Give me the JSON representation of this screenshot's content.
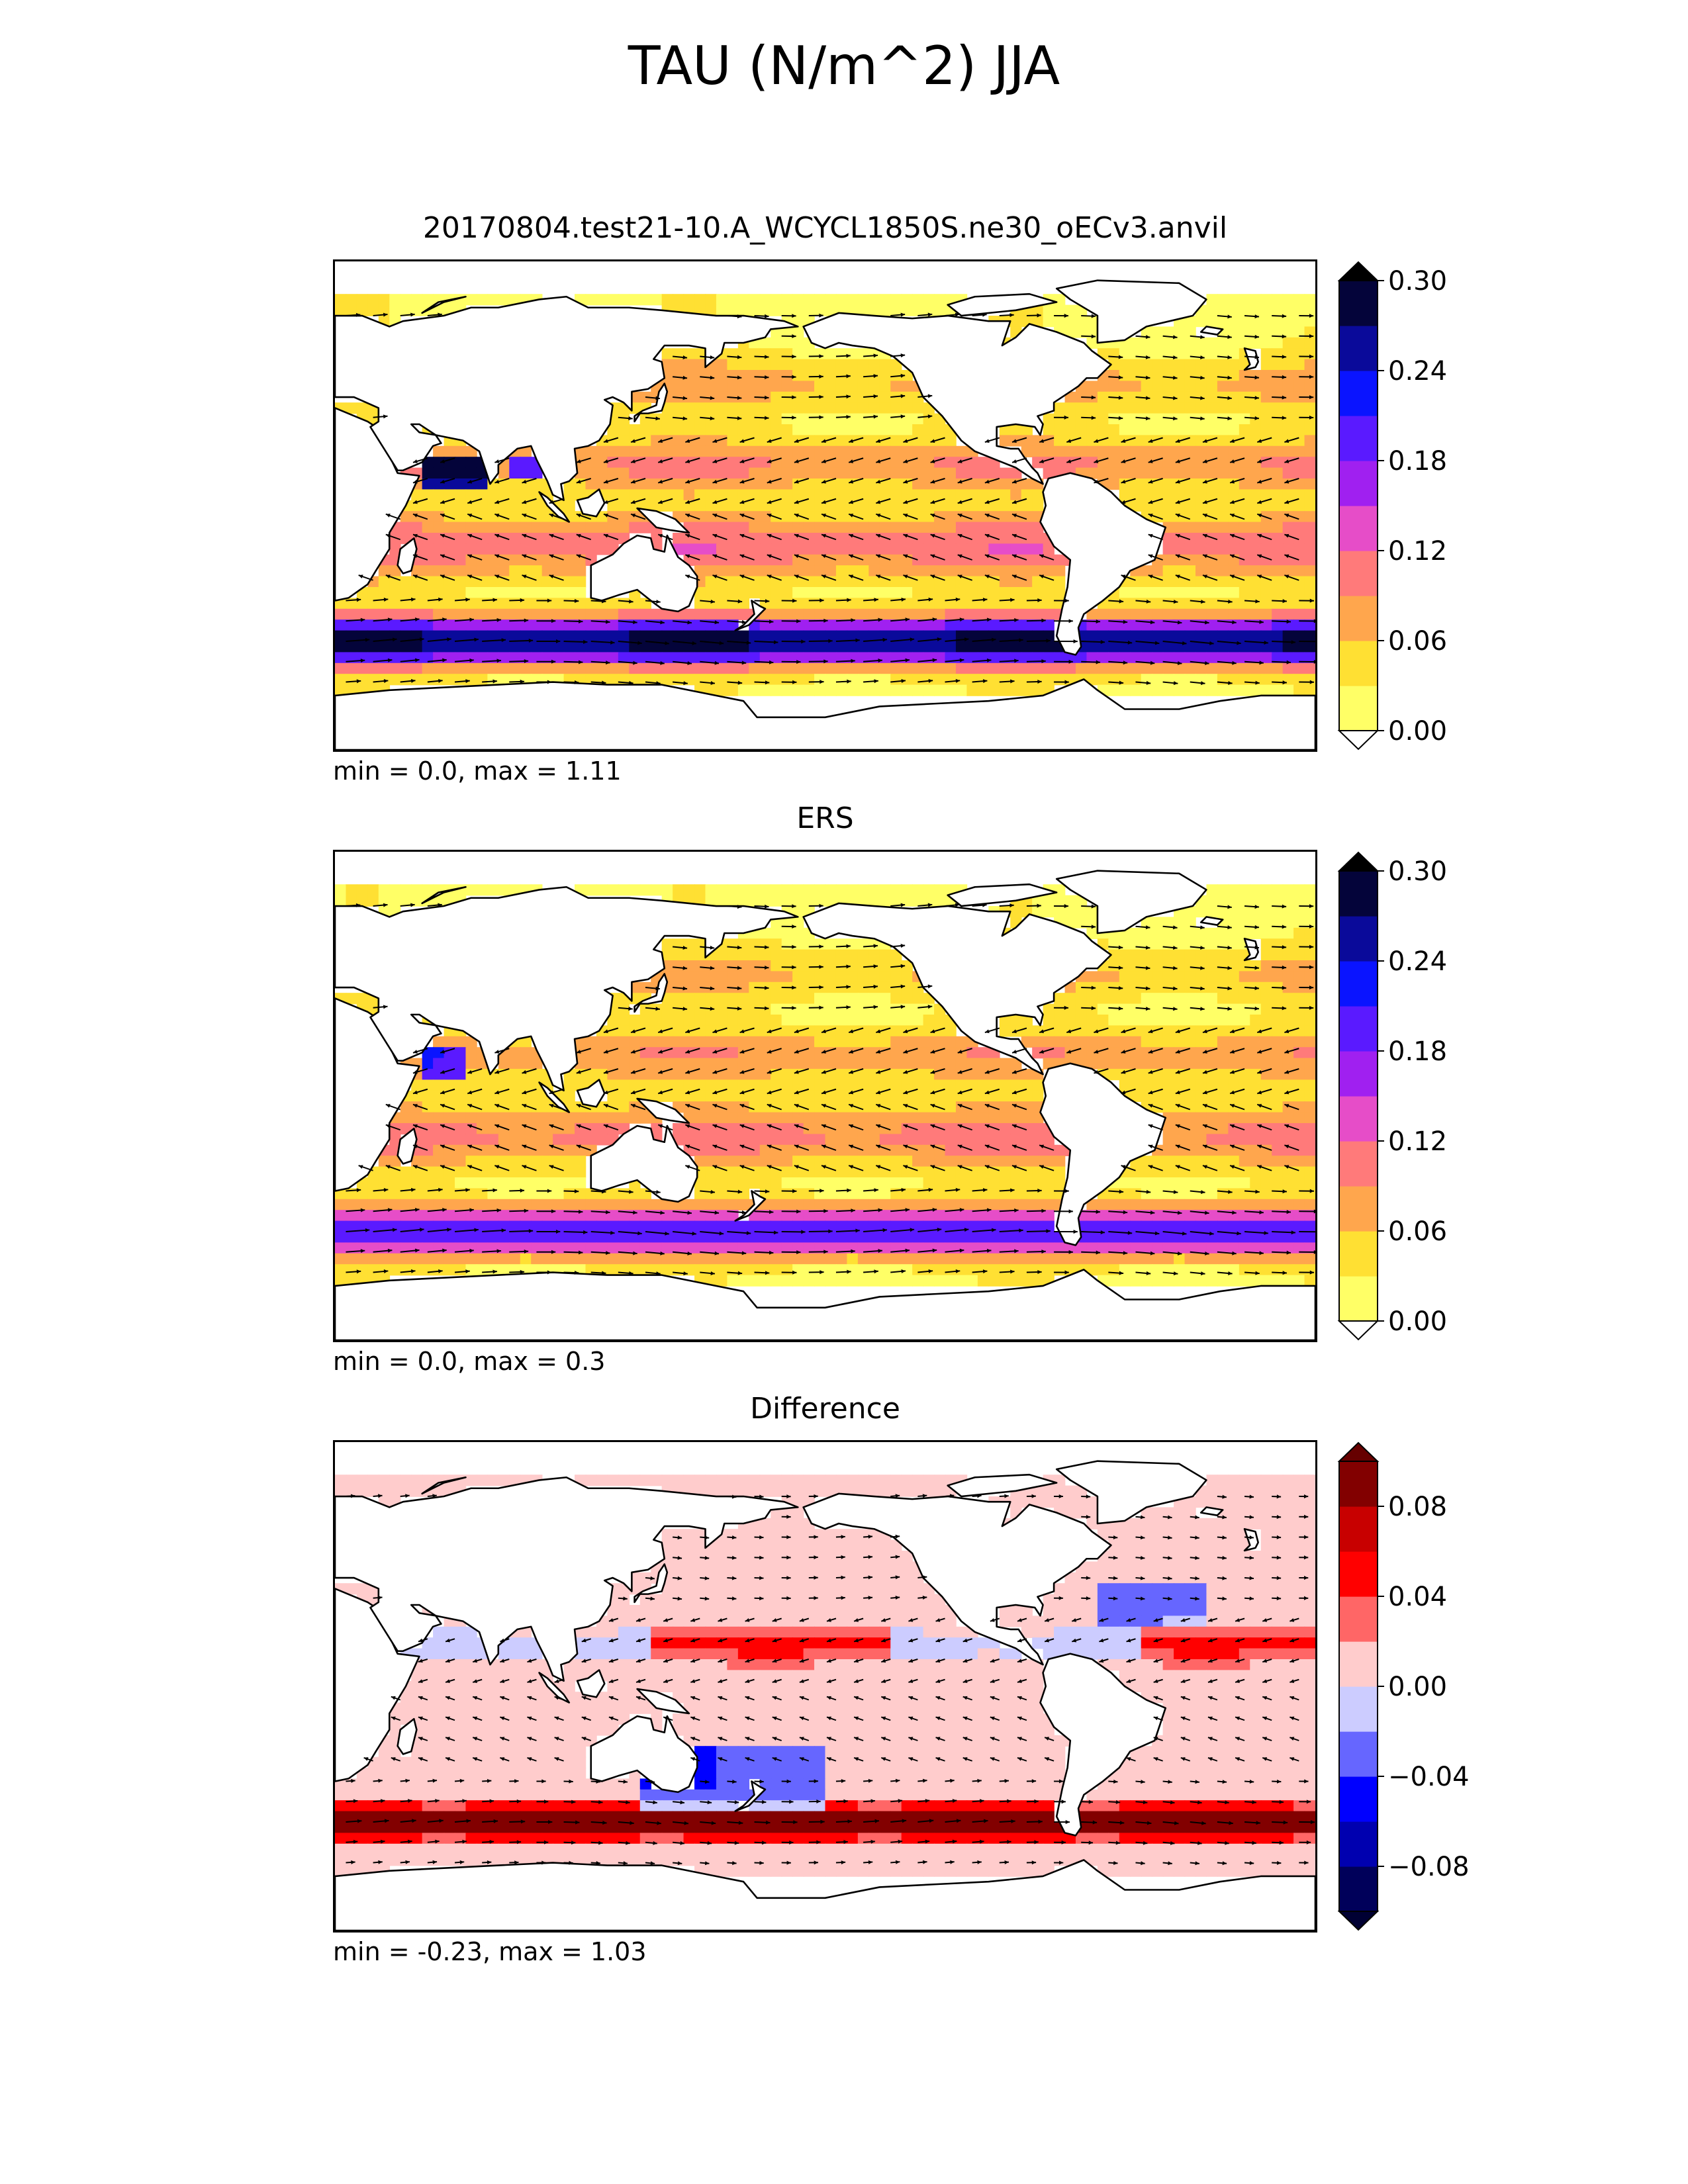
{
  "figure": {
    "title": "TAU (N/m^2) JJA"
  },
  "panels": [
    {
      "title": "20170804.test21-10.A_WCYCL1850S.ne30_oECv3.anvil",
      "stats": "min = 0.0, max = 1.11",
      "colormap": "sequential",
      "field_pattern": "test",
      "colorbar": {
        "ticks": [
          "0.00",
          "0.06",
          "0.12",
          "0.18",
          "0.24",
          "0.30"
        ],
        "tick_values": [
          0.0,
          0.06,
          0.12,
          0.18,
          0.24,
          0.3
        ],
        "levels": [
          0.0,
          0.03,
          0.06,
          0.09,
          0.12,
          0.15,
          0.18,
          0.21,
          0.24,
          0.27,
          0.3
        ],
        "colors": [
          "#ffff66",
          "#ffe033",
          "#ffa64d",
          "#ff7a7a",
          "#e64dc8",
          "#a020f0",
          "#5a1aff",
          "#0a14ff",
          "#0a0a9a",
          "#04043a"
        ],
        "under_color": "#ffffff",
        "over_color": "#000000"
      }
    },
    {
      "title": "ERS",
      "stats": "min = 0.0, max = 0.3",
      "colormap": "sequential",
      "field_pattern": "ref",
      "colorbar": {
        "ticks": [
          "0.00",
          "0.06",
          "0.12",
          "0.18",
          "0.24",
          "0.30"
        ],
        "tick_values": [
          0.0,
          0.06,
          0.12,
          0.18,
          0.24,
          0.3
        ],
        "levels": [
          0.0,
          0.03,
          0.06,
          0.09,
          0.12,
          0.15,
          0.18,
          0.21,
          0.24,
          0.27,
          0.3
        ],
        "colors": [
          "#ffff66",
          "#ffe033",
          "#ffa64d",
          "#ff7a7a",
          "#e64dc8",
          "#a020f0",
          "#5a1aff",
          "#0a14ff",
          "#0a0a9a",
          "#04043a"
        ],
        "under_color": "#ffffff",
        "over_color": "#000000"
      }
    },
    {
      "title": "Difference",
      "stats": "min = -0.23, max = 1.03",
      "colormap": "diverging",
      "field_pattern": "diff",
      "colorbar": {
        "ticks": [
          "−0.08",
          "−0.04",
          "0.00",
          "0.04",
          "0.08"
        ],
        "tick_values": [
          -0.08,
          -0.04,
          0.0,
          0.04,
          0.08
        ],
        "levels": [
          -0.1,
          -0.08,
          -0.06,
          -0.04,
          -0.02,
          0.0,
          0.02,
          0.04,
          0.06,
          0.08,
          0.1
        ],
        "colors": [
          "#00005a",
          "#0000b0",
          "#0000ff",
          "#6666ff",
          "#ccccff",
          "#ffcccc",
          "#ff6666",
          "#ff0000",
          "#c80000",
          "#820000"
        ],
        "under_color": "#000033",
        "over_color": "#660000"
      }
    }
  ]
}
